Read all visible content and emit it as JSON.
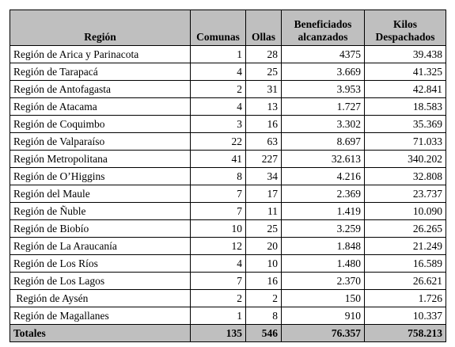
{
  "table": {
    "header": [
      "Región",
      "Comunas",
      "Ollas",
      "Beneficiados alcanzados",
      "Kilos Despachados"
    ],
    "rows": [
      [
        "Región de Arica y Parinacota",
        "1",
        "28",
        "4375",
        "39.438"
      ],
      [
        "Región de Tarapacá",
        "4",
        "25",
        "3.669",
        "41.325"
      ],
      [
        "Región de Antofagasta",
        "2",
        "31",
        "3.953",
        "42.841"
      ],
      [
        "Región de Atacama",
        "4",
        "13",
        "1.727",
        "18.583"
      ],
      [
        "Región de Coquimbo",
        "3",
        "16",
        "3.302",
        "35.369"
      ],
      [
        "Región de Valparaíso",
        "22",
        "63",
        "8.697",
        "71.033"
      ],
      [
        "Región Metropolitana",
        "41",
        "227",
        "32.613",
        "340.202"
      ],
      [
        "Región de O’Higgins",
        "8",
        "34",
        "4.216",
        "32.808"
      ],
      [
        "Región del Maule",
        "7",
        "17",
        "2.369",
        "23.737"
      ],
      [
        "Región de Ñuble",
        "7",
        "11",
        "1.419",
        "10.090"
      ],
      [
        "Región de Biobío",
        "10",
        "25",
        "3.259",
        "26.265"
      ],
      [
        "Región de La Araucanía",
        "12",
        "20",
        "1.848",
        "21.249"
      ],
      [
        "Región de Los Ríos",
        "4",
        "10",
        "1.480",
        "16.589"
      ],
      [
        "Región de Los Lagos",
        "7",
        "16",
        "2.370",
        "26.621"
      ],
      [
        " Región de Aysén",
        "2",
        "2",
        "150",
        "1.726"
      ],
      [
        "Región de Magallanes",
        "1",
        "8",
        "910",
        "10.337"
      ]
    ],
    "totals": [
      "Totales",
      "135",
      "546",
      "76.357",
      "758.213"
    ]
  }
}
